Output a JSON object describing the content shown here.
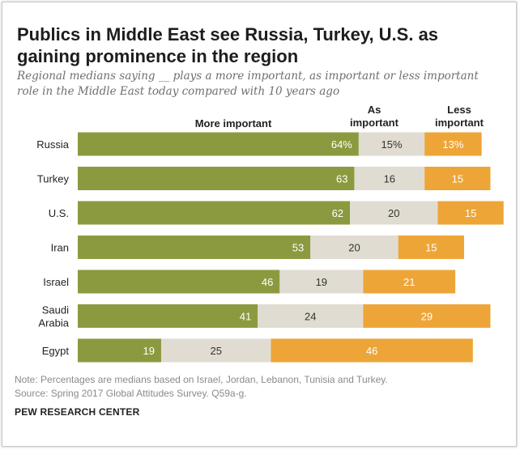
{
  "chart_data": {
    "type": "bar",
    "title": "Publics in Middle East see Russia, Turkey, U.S. as gaining prominence in the region",
    "subtitle": "Regional medians saying __ plays a more important, as important or less important role in the Middle East today compared with 10 years ago",
    "categories": [
      "Russia",
      "Turkey",
      "U.S.",
      "Iran",
      "Israel",
      "Saudi Arabia",
      "Egypt"
    ],
    "category_lines": [
      [
        "Russia"
      ],
      [
        "Turkey"
      ],
      [
        "U.S."
      ],
      [
        "Iran"
      ],
      [
        "Israel"
      ],
      [
        "Saudi",
        "Arabia"
      ],
      [
        "Egypt"
      ]
    ],
    "series": [
      {
        "name": "More important",
        "values": [
          64,
          63,
          62,
          53,
          46,
          41,
          19
        ],
        "labels": [
          "64%",
          "63",
          "62",
          "53",
          "46",
          "41",
          "19"
        ],
        "color": "#8c9a3f"
      },
      {
        "name": "As important",
        "values": [
          15,
          16,
          20,
          20,
          19,
          24,
          25
        ],
        "labels": [
          "15%",
          "16",
          "20",
          "20",
          "19",
          "24",
          "25"
        ],
        "color": "#e0dcd2"
      },
      {
        "name": "Less important",
        "values": [
          13,
          15,
          15,
          15,
          21,
          29,
          46
        ],
        "labels": [
          "13%",
          "15",
          "15",
          "15",
          "21",
          "29",
          "46"
        ],
        "color": "#eea537"
      }
    ],
    "column_headers": [
      [
        "More important"
      ],
      [
        "As",
        "important"
      ],
      [
        "Less",
        "important"
      ]
    ],
    "stacked": true
  },
  "note": "Note: Percentages are medians based on Israel, Jordan, Lebanon, Tunisia and Turkey.",
  "source": "Source: Spring 2017 Global Attitudes Survey. Q59a-g.",
  "brand": "PEW RESEARCH CENTER"
}
